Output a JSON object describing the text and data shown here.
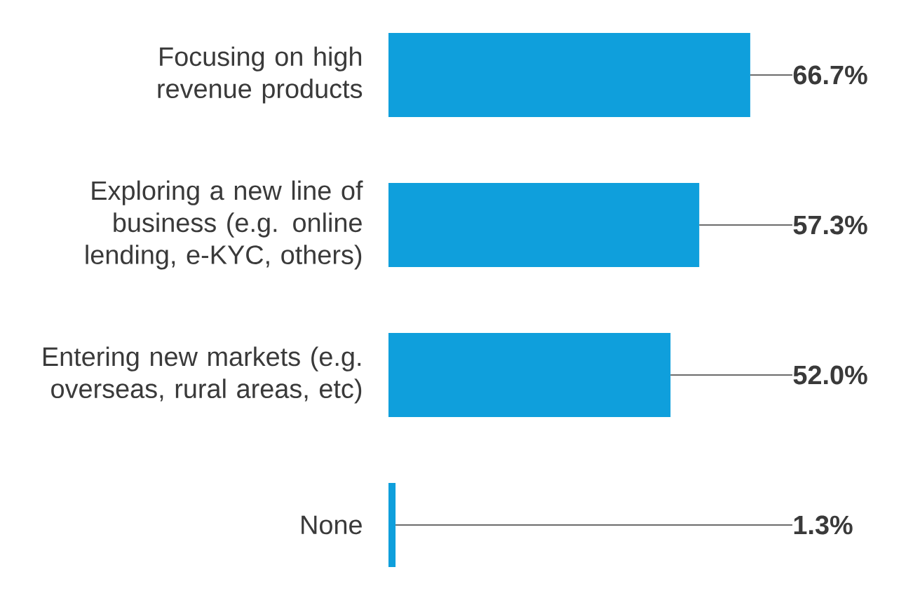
{
  "chart_data": {
    "type": "bar",
    "orientation": "horizontal",
    "categories": [
      "Focusing on high revenue products",
      "Exploring a new line of business (e.g. online lending, e-KYC, others)",
      "Entering new markets (e.g. overseas, rural areas, etc)",
      "None"
    ],
    "values": [
      66.7,
      57.3,
      52.0,
      1.3
    ],
    "value_labels": [
      "66.7%",
      "57.3%",
      "52.0%",
      "1.3%"
    ],
    "color": "#0f9fdc",
    "tick_labels": "y"
  }
}
